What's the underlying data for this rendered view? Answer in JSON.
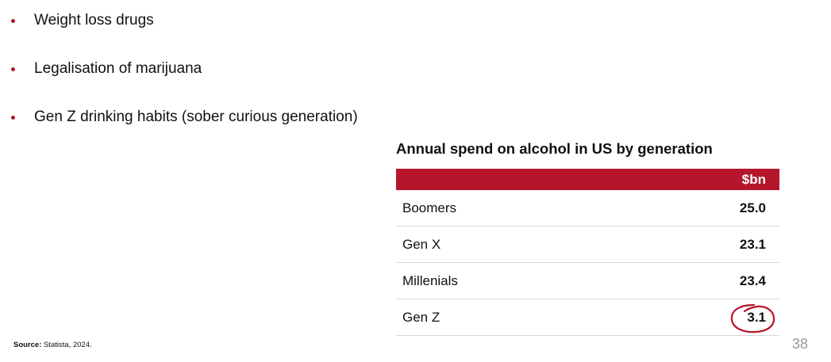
{
  "bullets": [
    {
      "text": "Weight loss drugs"
    },
    {
      "text": "Legalisation of marijuana"
    },
    {
      "text": "Gen Z drinking habits (sober curious generation)"
    }
  ],
  "table": {
    "title": "Annual spend on alcohol in US by generation",
    "unit_header": "$bn",
    "rows": [
      {
        "label": "Boomers",
        "value": "25.0"
      },
      {
        "label": "Gen X",
        "value": "23.1"
      },
      {
        "label": "Millenials",
        "value": "23.4"
      },
      {
        "label": "Gen Z",
        "value": "3.1"
      }
    ],
    "highlighted_row": "Gen Z"
  },
  "source": {
    "label": "Source:",
    "text": "Statista, 2024."
  },
  "page_number": "38",
  "colors": {
    "accent": "#b5162b",
    "text": "#111111",
    "page_number": "#9a9a9a",
    "row_divider": "#d6d6d6"
  }
}
